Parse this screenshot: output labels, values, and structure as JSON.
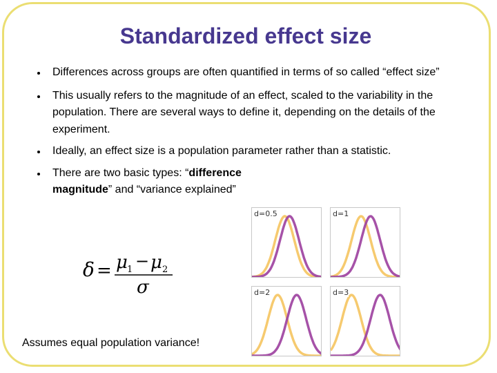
{
  "slide": {
    "title": "Standardized effect size",
    "bullets": [
      {
        "text": "Differences across groups are often quantified in terms of so called “effect size”"
      },
      {
        "text": "This usually refers to the magnitude of an effect, scaled to the variability in the population. There are several ways to define it, depending on the details of the experiment."
      },
      {
        "text": "Ideally, an effect size is a population parameter rather than a statistic."
      },
      {
        "prefix": "There are two basic types: “",
        "bold": "difference magnitude",
        "suffix": "” and “variance explained”"
      }
    ],
    "formula": {
      "lhs": "δ",
      "eq": "=",
      "num_a": "μ",
      "num_a_sub": "1",
      "minus": "−",
      "num_b": "μ",
      "num_b_sub": "2",
      "den": "σ"
    },
    "footnote": "Assumes equal population variance!"
  },
  "panels": [
    {
      "label": "d=0.5",
      "d": 0.5
    },
    {
      "label": "d=1",
      "d": 1
    },
    {
      "label": "d=2",
      "d": 2
    },
    {
      "label": "d=3",
      "d": 3
    }
  ],
  "colors": {
    "title": "#47388f",
    "frame": "#ebde72",
    "curve_a": "#f5c45f",
    "curve_b": "#9c3f9e"
  }
}
